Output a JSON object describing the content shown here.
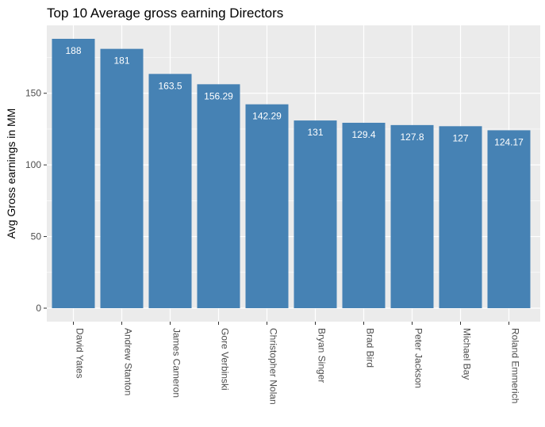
{
  "chart_data": {
    "type": "bar",
    "title": "Top 10 Average gross earning Directors",
    "xlabel": "",
    "ylabel": "Avg Gross earnings in MM",
    "categories": [
      "David Yates",
      "Andrew Stanton",
      "James Cameron",
      "Gore Verbinski",
      "Christopher Nolan",
      "Bryan Singer",
      "Brad Bird",
      "Peter Jackson",
      "Michael Bay",
      "Roland Emmerich"
    ],
    "values": [
      188,
      181,
      163.5,
      156.29,
      142.29,
      131,
      129.4,
      127.8,
      127,
      124.17
    ],
    "value_labels": [
      "188",
      "181",
      "163.5",
      "156.29",
      "142.29",
      "131",
      "129.4",
      "127.8",
      "127",
      "124.17"
    ],
    "yticks": [
      0,
      50,
      100,
      150
    ],
    "ytick_labels": [
      "0",
      "50",
      "100",
      "150"
    ],
    "ylim": [
      -9.4,
      197.4
    ],
    "grid": true,
    "legend": "none",
    "colors": {
      "bar": "#4682B4",
      "panel": "#EBEBEB",
      "grid": "#FFFFFF",
      "tick": "#333333"
    }
  }
}
